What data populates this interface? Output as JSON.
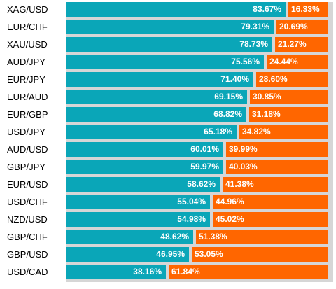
{
  "colors": {
    "long": "#0aa6b8",
    "short": "#ff6600",
    "track": "#d6d6d6",
    "label": "#000000",
    "value_text": "#ffffff"
  },
  "chart_data": {
    "type": "bar",
    "stacked": true,
    "orientation": "horizontal",
    "title": "",
    "categories": [
      "XAG/USD",
      "EUR/CHF",
      "XAU/USD",
      "AUD/JPY",
      "EUR/JPY",
      "EUR/AUD",
      "EUR/GBP",
      "USD/JPY",
      "AUD/USD",
      "GBP/JPY",
      "EUR/USD",
      "USD/CHF",
      "NZD/USD",
      "GBP/CHF",
      "GBP/USD",
      "USD/CAD"
    ],
    "series": [
      {
        "color": "#0aa6b8",
        "values": [
          83.67,
          79.31,
          78.73,
          75.56,
          71.4,
          69.15,
          68.82,
          65.18,
          60.01,
          59.97,
          58.62,
          55.04,
          54.98,
          48.62,
          46.95,
          38.16
        ],
        "labels": [
          "83.67%",
          "79.31%",
          "78.73%",
          "75.56%",
          "71.40%",
          "69.15%",
          "68.82%",
          "65.18%",
          "60.01%",
          "59.97%",
          "58.62%",
          "55.04%",
          "54.98%",
          "48.62%",
          "46.95%",
          "38.16%"
        ]
      },
      {
        "color": "#ff6600",
        "values": [
          16.33,
          20.69,
          21.27,
          24.44,
          28.6,
          30.85,
          31.18,
          34.82,
          39.99,
          40.03,
          41.38,
          44.96,
          45.02,
          51.38,
          53.05,
          61.84
        ],
        "labels": [
          "16.33%",
          "20.69%",
          "21.27%",
          "24.44%",
          "28.60%",
          "30.85%",
          "31.18%",
          "34.82%",
          "39.99%",
          "40.03%",
          "41.38%",
          "44.96%",
          "45.02%",
          "51.38%",
          "53.05%",
          "61.84%"
        ]
      }
    ],
    "xlim": [
      0,
      100
    ],
    "grid": false,
    "legend": "none"
  }
}
